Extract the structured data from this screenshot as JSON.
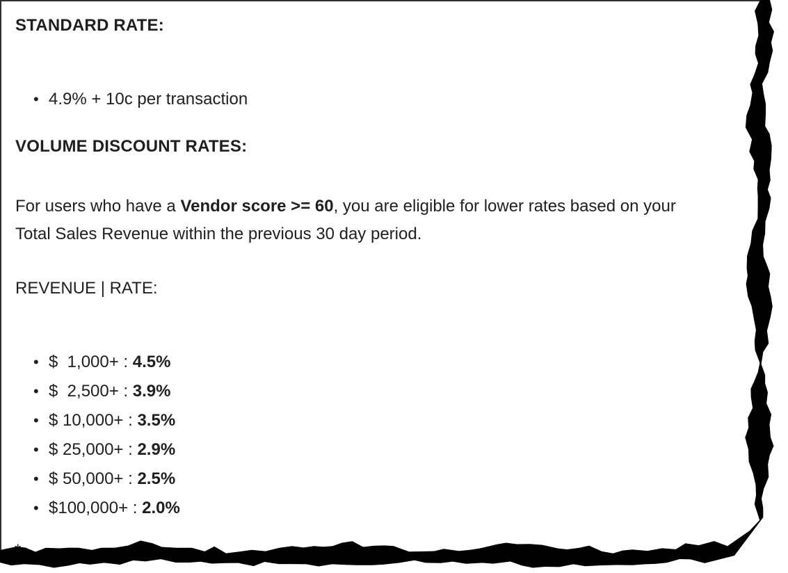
{
  "doc": {
    "standard": {
      "heading": "STANDARD RATE:",
      "items": [
        {
          "text": "4.9% + 10c per transaction"
        }
      ]
    },
    "volume": {
      "heading": "VOLUME DISCOUNT RATES:",
      "intro": {
        "line1_pre": "For users who have a ",
        "line1_bold": "Vendor score >= 60",
        "line1_post": ", you are eligible for lower rates based on your",
        "line2": "Total Sales Revenue within the previous 30 day period."
      },
      "table_label": "REVENUE | RATE:",
      "separator": " : ",
      "rates": [
        {
          "revenue": "$  1,000+",
          "rate": "4.5%"
        },
        {
          "revenue": "$  2,500+",
          "rate": "3.9%"
        },
        {
          "revenue": "$ 10,000+",
          "rate": "3.5%"
        },
        {
          "revenue": "$ 25,000+",
          "rate": "2.9%"
        },
        {
          "revenue": "$ 50,000+",
          "rate": "2.5%"
        },
        {
          "revenue": "$100,000+",
          "rate": "2.0%"
        }
      ]
    },
    "footnote": {
      "marker": "*"
    }
  },
  "colors": {
    "text": "#1f1f1f",
    "paper": "#ffffff",
    "border": "#2f2f2f",
    "tear": "#000000"
  }
}
